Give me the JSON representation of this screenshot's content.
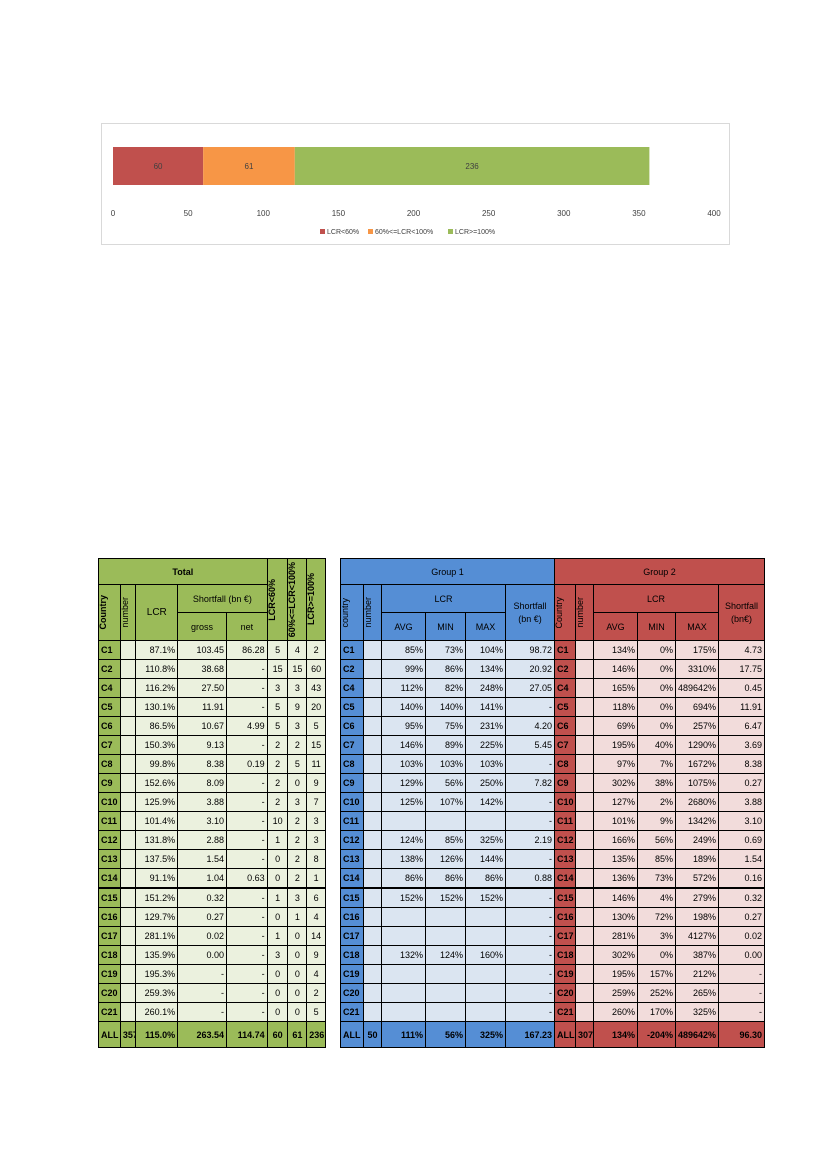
{
  "chart_data": {
    "type": "bar",
    "orientation": "horizontal",
    "stacked": true,
    "series": [
      {
        "name": "LCR<60%",
        "values": [
          60
        ],
        "color": "#c0504d"
      },
      {
        "name": "60%<=LCR<100%",
        "values": [
          61
        ],
        "color": "#f79646"
      },
      {
        "name": "LCR>=100%",
        "values": [
          236
        ],
        "color": "#9bbb59"
      }
    ],
    "xlim": [
      0,
      400
    ],
    "xticks": [
      "0",
      "50",
      "100",
      "150",
      "200",
      "250",
      "300",
      "350",
      "400"
    ],
    "grid": false,
    "legend": "bottom"
  },
  "total": {
    "title": "Total",
    "col_country": "Country",
    "col_number": "number",
    "col_lcr": "LCR",
    "col_shortfall": "Shortfall (bn €)",
    "col_gross": "gross",
    "col_net": "net",
    "col_lcr_lt60": "LCR<60%",
    "col_lcr_60_100": "60%<=LCR<100%",
    "col_lcr_ge100": "LCR>=100%",
    "rows": [
      [
        "C1",
        "",
        "87.1%",
        "103.45",
        "86.28",
        "5",
        "4",
        "2"
      ],
      [
        "C2",
        "",
        "110.8%",
        "38.68",
        "-",
        "15",
        "15",
        "60"
      ],
      [
        "C4",
        "",
        "116.2%",
        "27.50",
        "-",
        "3",
        "3",
        "43"
      ],
      [
        "C5",
        "",
        "130.1%",
        "11.91",
        "-",
        "5",
        "9",
        "20"
      ],
      [
        "C6",
        "",
        "86.5%",
        "10.67",
        "4.99",
        "5",
        "3",
        "5"
      ],
      [
        "C7",
        "",
        "150.3%",
        "9.13",
        "-",
        "2",
        "2",
        "15"
      ],
      [
        "C8",
        "",
        "99.8%",
        "8.38",
        "0.19",
        "2",
        "5",
        "11"
      ],
      [
        "C9",
        "",
        "152.6%",
        "8.09",
        "-",
        "2",
        "0",
        "9"
      ],
      [
        "C10",
        "",
        "125.9%",
        "3.88",
        "-",
        "2",
        "3",
        "7"
      ],
      [
        "C11",
        "",
        "101.4%",
        "3.10",
        "-",
        "10",
        "2",
        "3"
      ],
      [
        "C12",
        "",
        "131.8%",
        "2.88",
        "-",
        "1",
        "2",
        "3"
      ],
      [
        "C13",
        "",
        "137.5%",
        "1.54",
        "-",
        "0",
        "2",
        "8"
      ],
      [
        "C14",
        "",
        "91.1%",
        "1.04",
        "0.63",
        "0",
        "2",
        "1"
      ],
      [
        "C15",
        "",
        "151.2%",
        "0.32",
        "-",
        "1",
        "3",
        "6"
      ],
      [
        "C16",
        "",
        "129.7%",
        "0.27",
        "-",
        "0",
        "1",
        "4"
      ],
      [
        "C17",
        "",
        "281.1%",
        "0.02",
        "-",
        "1",
        "0",
        "14"
      ],
      [
        "C18",
        "",
        "135.9%",
        "0.00",
        "-",
        "3",
        "0",
        "9"
      ],
      [
        "C19",
        "",
        "195.3%",
        "-",
        "-",
        "0",
        "0",
        "4"
      ],
      [
        "C20",
        "",
        "259.3%",
        "-",
        "-",
        "0",
        "0",
        "2"
      ],
      [
        "C21",
        "",
        "260.1%",
        "-",
        "-",
        "0",
        "0",
        "5"
      ]
    ],
    "all": [
      "ALL",
      "357",
      "115.0%",
      "263.54",
      "114.74",
      "60",
      "61",
      "236"
    ]
  },
  "group1": {
    "title": "Group 1",
    "col_country": "country",
    "col_number": "number",
    "col_lcr": "LCR",
    "col_avg": "AVG",
    "col_min": "MIN",
    "col_max": "MAX",
    "col_shortfall": "Shortfall (bn €)",
    "rows": [
      [
        "C1",
        "",
        "85%",
        "73%",
        "104%",
        "98.72"
      ],
      [
        "C2",
        "",
        "99%",
        "86%",
        "134%",
        "20.92"
      ],
      [
        "C4",
        "",
        "112%",
        "82%",
        "248%",
        "27.05"
      ],
      [
        "C5",
        "",
        "140%",
        "140%",
        "141%",
        "-"
      ],
      [
        "C6",
        "",
        "95%",
        "75%",
        "231%",
        "4.20"
      ],
      [
        "C7",
        "",
        "146%",
        "89%",
        "225%",
        "5.45"
      ],
      [
        "C8",
        "",
        "103%",
        "103%",
        "103%",
        "-"
      ],
      [
        "C9",
        "",
        "129%",
        "56%",
        "250%",
        "7.82"
      ],
      [
        "C10",
        "",
        "125%",
        "107%",
        "142%",
        "-"
      ],
      [
        "C11",
        "",
        "",
        "",
        "",
        "-"
      ],
      [
        "C12",
        "",
        "124%",
        "85%",
        "325%",
        "2.19"
      ],
      [
        "C13",
        "",
        "138%",
        "126%",
        "144%",
        "-"
      ],
      [
        "C14",
        "",
        "86%",
        "86%",
        "86%",
        "0.88"
      ],
      [
        "C15",
        "",
        "152%",
        "152%",
        "152%",
        "-"
      ],
      [
        "C16",
        "",
        "",
        "",
        "",
        "-"
      ],
      [
        "C17",
        "",
        "",
        "",
        "",
        "-"
      ],
      [
        "C18",
        "",
        "132%",
        "124%",
        "160%",
        "-"
      ],
      [
        "C19",
        "",
        "",
        "",
        "",
        "-"
      ],
      [
        "C20",
        "",
        "",
        "",
        "",
        "-"
      ],
      [
        "C21",
        "",
        "",
        "",
        "",
        "-"
      ]
    ],
    "all": [
      "ALL",
      "50",
      "111%",
      "56%",
      "325%",
      "167.23"
    ]
  },
  "group2": {
    "title": "Group 2",
    "col_country": "Country",
    "col_number": "number",
    "col_lcr": "LCR",
    "col_avg": "AVG",
    "col_min": "MIN",
    "col_max": "MAX",
    "col_shortfall": "Shortfall (bn€)",
    "rows": [
      [
        "C1",
        "",
        "134%",
        "0%",
        "175%",
        "4.73"
      ],
      [
        "C2",
        "",
        "146%",
        "0%",
        "3310%",
        "17.75"
      ],
      [
        "C4",
        "",
        "165%",
        "0%",
        "489642%",
        "0.45"
      ],
      [
        "C5",
        "",
        "118%",
        "0%",
        "694%",
        "11.91"
      ],
      [
        "C6",
        "",
        "69%",
        "0%",
        "257%",
        "6.47"
      ],
      [
        "C7",
        "",
        "195%",
        "40%",
        "1290%",
        "3.69"
      ],
      [
        "C8",
        "",
        "97%",
        "7%",
        "1672%",
        "8.38"
      ],
      [
        "C9",
        "",
        "302%",
        "38%",
        "1075%",
        "0.27"
      ],
      [
        "C10",
        "",
        "127%",
        "2%",
        "2680%",
        "3.88"
      ],
      [
        "C11",
        "",
        "101%",
        "9%",
        "1342%",
        "3.10"
      ],
      [
        "C12",
        "",
        "166%",
        "56%",
        "249%",
        "0.69"
      ],
      [
        "C13",
        "",
        "135%",
        "85%",
        "189%",
        "1.54"
      ],
      [
        "C14",
        "",
        "136%",
        "73%",
        "572%",
        "0.16"
      ],
      [
        "C15",
        "",
        "146%",
        "4%",
        "279%",
        "0.32"
      ],
      [
        "C16",
        "",
        "130%",
        "72%",
        "198%",
        "0.27"
      ],
      [
        "C17",
        "",
        "281%",
        "3%",
        "4127%",
        "0.02"
      ],
      [
        "C18",
        "",
        "302%",
        "0%",
        "387%",
        "0.00"
      ],
      [
        "C19",
        "",
        "195%",
        "157%",
        "212%",
        "-"
      ],
      [
        "C20",
        "",
        "259%",
        "252%",
        "265%",
        "-"
      ],
      [
        "C21",
        "",
        "260%",
        "170%",
        "325%",
        "-"
      ]
    ],
    "all": [
      "ALL",
      "307",
      "134%",
      "-204%",
      "489642%",
      "96.30"
    ]
  }
}
